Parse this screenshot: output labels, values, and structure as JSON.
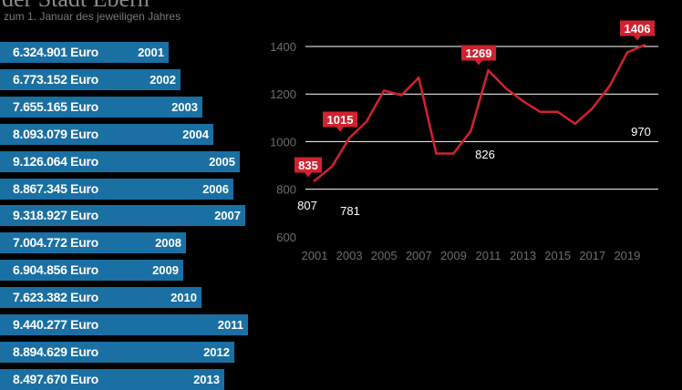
{
  "header": {
    "title": "der Stadt Ebern",
    "subtitle": "zum 1. Januar des jeweiligen Jahres"
  },
  "colors": {
    "bar": "#1a6fa3",
    "line": "#d0222f",
    "grid": "#ffffff",
    "tick": "#6d6d6d"
  },
  "chart_data": [
    {
      "type": "bar",
      "orientation": "horizontal",
      "categories": [
        "2001",
        "2002",
        "2003",
        "2004",
        "2005",
        "2006",
        "2007",
        "2008",
        "2009",
        "2010",
        "2011",
        "2012",
        "2013"
      ],
      "values": [
        6324901,
        6773152,
        7655165,
        8093079,
        9126064,
        8867345,
        9318927,
        7004772,
        6904856,
        7623382,
        9440277,
        8894629,
        8497670
      ],
      "value_labels": [
        "6.324.901 Euro",
        "6.773.152 Euro",
        "7.655.165 Euro",
        "8.093.079 Euro",
        "9.126.064 Euro",
        "8.867.345 Euro",
        "9.318.927 Euro",
        "7.004.772 Euro",
        "6.904.856 Euro",
        "7.623.382 Euro",
        "9.440.277 Euro",
        "8.894.629 Euro",
        "8.497.670 Euro"
      ]
    },
    {
      "type": "line",
      "x": [
        2001,
        2002,
        2003,
        2004,
        2005,
        2006,
        2007,
        2008,
        2009,
        2010,
        2011,
        2012,
        2013,
        2014,
        2015,
        2016,
        2017,
        2018,
        2019,
        2020
      ],
      "series": [
        {
          "values": [
            835,
            895,
            1015,
            1085,
            1215,
            1195,
            1269,
            950,
            950,
            1045,
            1300,
            1225,
            1170,
            1125,
            1125,
            1075,
            1140,
            1235,
            1375,
            1406
          ]
        }
      ],
      "ylim": [
        600,
        1400
      ],
      "yticks": [
        600,
        800,
        1000,
        1200,
        1400
      ],
      "xticks": [
        2001,
        2003,
        2005,
        2007,
        2009,
        2011,
        2013,
        2015,
        2017,
        2019
      ],
      "grid": true,
      "annotations": [
        {
          "x": 2001,
          "text": "835",
          "style": "box"
        },
        {
          "x": 2002,
          "text": "1015",
          "style": "box"
        },
        {
          "x": 2007.9,
          "text": "1269",
          "style": "box"
        },
        {
          "x": 2019.5,
          "text": "1406",
          "style": "box"
        },
        {
          "x": 2001,
          "text": "807",
          "style": "plain"
        },
        {
          "x": 2002.9,
          "text": "781",
          "style": "plain"
        },
        {
          "x": 2010.7,
          "text": "826",
          "style": "plain"
        },
        {
          "x": 2019.5,
          "text": "970",
          "style": "plain"
        }
      ]
    }
  ]
}
